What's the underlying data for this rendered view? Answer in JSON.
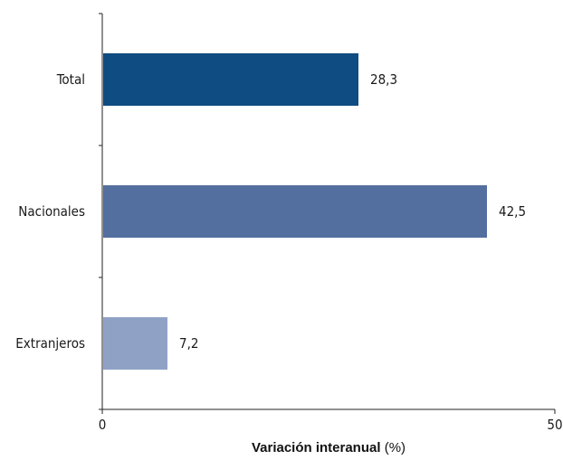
{
  "chart_data": {
    "type": "bar",
    "orientation": "horizontal",
    "categories": [
      "Total",
      "Nacionales",
      "Extranjeros"
    ],
    "values": [
      28.3,
      42.5,
      7.2
    ],
    "value_labels": [
      "28,3",
      "42,5",
      "7,2"
    ],
    "colors": [
      "#0f4c81",
      "#536f9f",
      "#8fa2c6"
    ],
    "xlim": [
      0,
      50
    ],
    "xticks": [
      0,
      50
    ],
    "xtick_labels": [
      "0",
      "50"
    ],
    "xlabel": "Variación interanual",
    "xlabel_unit": "(%)",
    "title": "",
    "grid": false,
    "legend": "none"
  }
}
